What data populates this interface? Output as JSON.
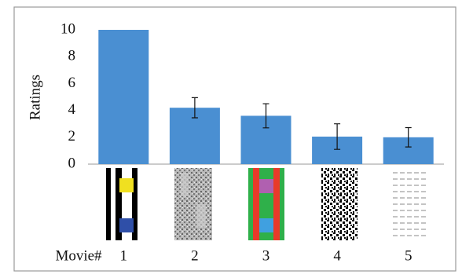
{
  "chart_data": {
    "type": "bar",
    "y_label": "Ratings",
    "x_label": "Movie#",
    "categories": [
      "1",
      "2",
      "3",
      "4",
      "5"
    ],
    "values": [
      10,
      4.2,
      3.6,
      2.05,
      2.0
    ],
    "errors": [
      null,
      0.75,
      0.9,
      0.95,
      0.72
    ],
    "color": "#4a8fd2",
    "ylim": [
      0,
      10
    ],
    "yticks": [
      0,
      2,
      4,
      6,
      8,
      10
    ],
    "grid": false
  }
}
